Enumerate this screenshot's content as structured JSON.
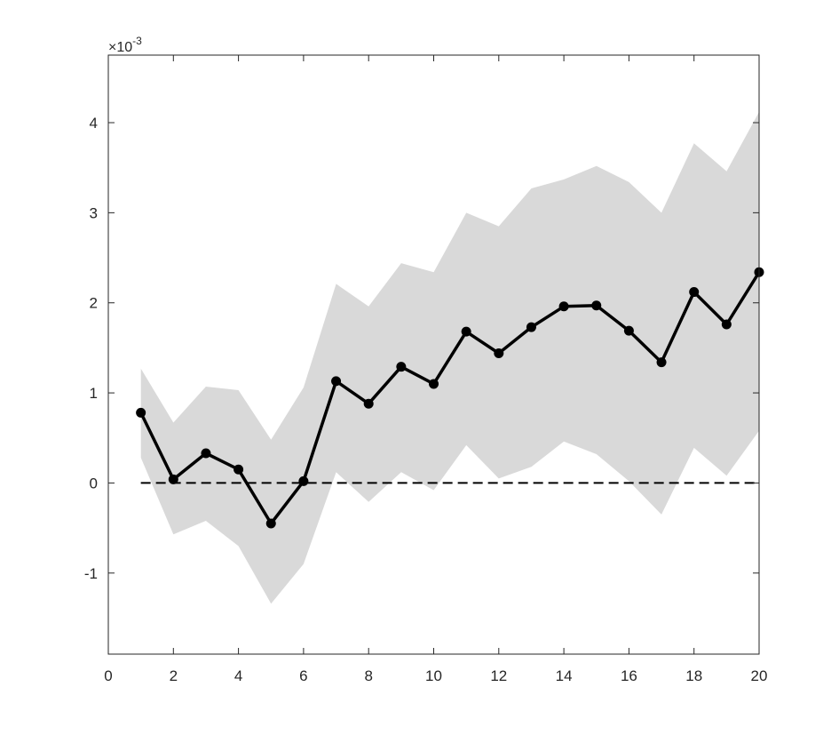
{
  "chart_data": {
    "type": "line",
    "title": "",
    "xlabel": "",
    "ylabel": "",
    "y_exponent_label": "×10",
    "y_exponent_power": "-3",
    "xlim": [
      0,
      20
    ],
    "ylim": [
      -0.0019,
      0.00475
    ],
    "xticks": [
      0,
      2,
      4,
      6,
      8,
      10,
      12,
      14,
      16,
      18,
      20
    ],
    "xtick_labels": [
      "0",
      "2",
      "4",
      "6",
      "8",
      "10",
      "12",
      "14",
      "16",
      "18",
      "20"
    ],
    "yticks": [
      -0.001,
      0,
      0.001,
      0.002,
      0.003,
      0.004
    ],
    "ytick_labels": [
      "-1",
      "0",
      "1",
      "2",
      "3",
      "4"
    ],
    "grid": false,
    "x": [
      1,
      2,
      3,
      4,
      5,
      6,
      7,
      8,
      9,
      10,
      11,
      12,
      13,
      14,
      15,
      16,
      17,
      18,
      19,
      20
    ],
    "series": [
      {
        "values": [
          0.00078,
          4e-05,
          0.00033,
          0.00015,
          -0.00045,
          2e-05,
          0.00113,
          0.00088,
          0.00129,
          0.0011,
          0.00168,
          0.00144,
          0.00173,
          0.00196,
          0.00197,
          0.00169,
          0.00134,
          0.00212,
          0.00176,
          0.00234
        ]
      }
    ],
    "band_upper": [
      0.00127,
      0.00067,
      0.00107,
      0.00103,
      0.00048,
      0.00106,
      0.00221,
      0.00196,
      0.00244,
      0.00234,
      0.003,
      0.00285,
      0.00327,
      0.00337,
      0.00352,
      0.00334,
      0.003,
      0.00377,
      0.00346,
      0.00412
    ],
    "band_lower": [
      0.00028,
      -0.00057,
      -0.00042,
      -0.0007,
      -0.00134,
      -0.0009,
      0.00012,
      -0.00021,
      0.00012,
      -8e-05,
      0.00042,
      5e-05,
      0.00018,
      0.00046,
      0.00032,
      2e-05,
      -0.00035,
      0.00039,
      8e-05,
      0.00058
    ],
    "reference_line": 0,
    "colors": {
      "line": "#000000",
      "band": "#d9d9d9",
      "axis": "#262626"
    }
  }
}
